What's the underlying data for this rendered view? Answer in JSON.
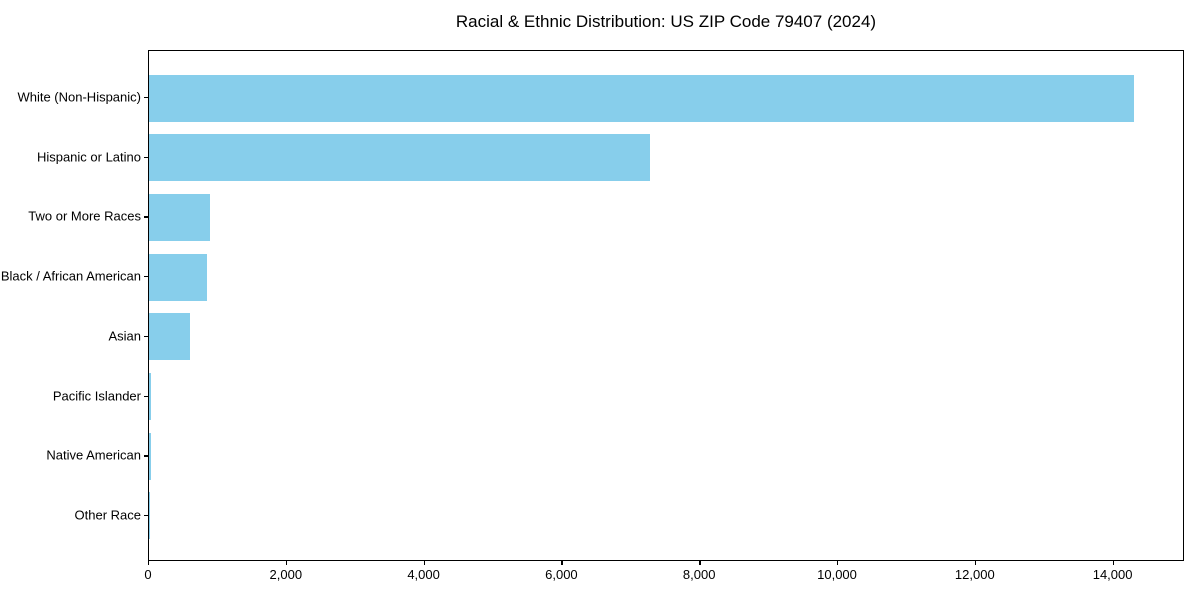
{
  "chart_data": {
    "type": "bar",
    "orientation": "horizontal",
    "title": "Racial & Ethnic Distribution: US ZIP Code 79407 (2024)",
    "categories": [
      "White (Non-Hispanic)",
      "Hispanic or Latino",
      "Two or More Races",
      "Black / African American",
      "Asian",
      "Pacific Islander",
      "Native American",
      "Other Race"
    ],
    "values": [
      14320,
      7280,
      890,
      845,
      590,
      35,
      30,
      5
    ],
    "xlabel": "",
    "ylabel": "",
    "xlim": [
      0,
      15036
    ],
    "x_ticks": [
      0,
      2000,
      4000,
      6000,
      8000,
      10000,
      12000,
      14000
    ],
    "x_tick_labels": [
      "0",
      "2,000",
      "4,000",
      "6,000",
      "8,000",
      "10,000",
      "12,000",
      "14,000"
    ],
    "bar_color": "#87CEEB",
    "grid": false,
    "legend_position": "none",
    "sort_order": "descending"
  },
  "colors": {
    "bar": "#87CEEB",
    "text": "#000000",
    "spine": "#000000",
    "background": "#FFFFFF"
  }
}
